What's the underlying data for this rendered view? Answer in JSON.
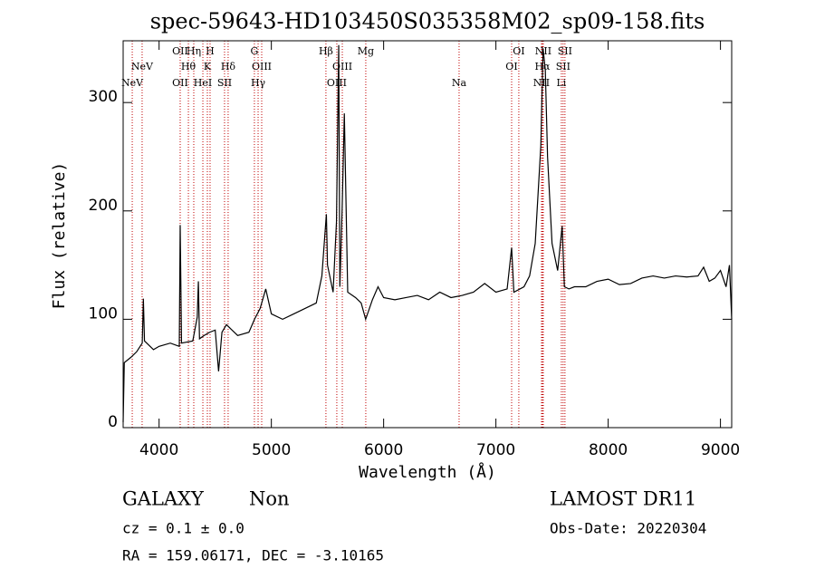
{
  "chart_data": {
    "type": "line",
    "title": "spec-59643-HD103450S035358M02_sp09-158.fits",
    "x_label": "Wavelength (Å)",
    "y_label": "Flux (relative)",
    "xlim": [
      3680,
      9100
    ],
    "ylim": [
      0,
      357
    ],
    "xticks": [
      4000,
      5000,
      6000,
      7000,
      8000,
      9000
    ],
    "yticks": [
      0,
      100,
      200,
      300
    ],
    "x": [
      3680,
      3690,
      3750,
      3800,
      3850,
      3860,
      3870,
      3950,
      4000,
      4100,
      4180,
      4188,
      4200,
      4300,
      4340,
      4350,
      4360,
      4400,
      4450,
      4500,
      4530,
      4560,
      4600,
      4700,
      4800,
      4850,
      4900,
      4950,
      5000,
      5100,
      5200,
      5300,
      5400,
      5450,
      5490,
      5500,
      5550,
      5580,
      5600,
      5610,
      5630,
      5650,
      5680,
      5750,
      5800,
      5840,
      5900,
      5950,
      6000,
      6100,
      6200,
      6300,
      6400,
      6500,
      6600,
      6700,
      6800,
      6900,
      7000,
      7100,
      7140,
      7160,
      7250,
      7300,
      7350,
      7400,
      7420,
      7440,
      7460,
      7500,
      7550,
      7590,
      7610,
      7650,
      7700,
      7800,
      7900,
      8000,
      8100,
      8200,
      8300,
      8400,
      8500,
      8600,
      8700,
      8800,
      8850,
      8900,
      8950,
      9000,
      9050,
      9080,
      9100
    ],
    "series": [
      {
        "name": "Flux",
        "color": "#000000",
        "values": [
          5,
          60,
          65,
          70,
          78,
          119,
          80,
          72,
          75,
          78,
          75,
          187,
          78,
          80,
          102,
          135,
          82,
          85,
          88,
          90,
          52,
          88,
          95,
          85,
          88,
          100,
          110,
          128,
          105,
          100,
          105,
          110,
          115,
          140,
          197,
          150,
          125,
          190,
          353,
          130,
          200,
          290,
          125,
          120,
          115,
          100,
          118,
          130,
          120,
          118,
          120,
          122,
          118,
          125,
          120,
          122,
          125,
          133,
          125,
          128,
          166,
          125,
          130,
          140,
          170,
          260,
          350,
          330,
          250,
          170,
          145,
          186,
          130,
          128,
          130,
          130,
          135,
          137,
          132,
          133,
          138,
          140,
          138,
          140,
          139,
          140,
          148,
          135,
          138,
          145,
          130,
          150,
          100
        ]
      }
    ],
    "line_color": "#c00000",
    "lines": [
      [
        {
          "label": "OII",
          "x": 4188
        },
        {
          "label": "Hη",
          "x": 4309
        },
        {
          "label": "H",
          "x": 4454
        },
        {
          "label": "G",
          "x": 4849
        },
        {
          "label": "Hβ",
          "x": 5486
        },
        {
          "label": "Mg",
          "x": 5841
        },
        {
          "label": "OI",
          "x": 7204
        },
        {
          "label": "NII",
          "x": 7422
        },
        {
          "label": "SII",
          "x": 7615
        }
      ],
      [
        {
          "label": "NeV",
          "x": 3849
        },
        {
          "label": "Hθ",
          "x": 4261
        },
        {
          "label": "K",
          "x": 4430
        },
        {
          "label": "Hδ",
          "x": 4615
        },
        {
          "label": "OIII",
          "x": 4914
        },
        {
          "label": "OIII",
          "x": 5632
        },
        {
          "label": "OI",
          "x": 7140
        },
        {
          "label": "Hα",
          "x": 7414
        },
        {
          "label": "SII",
          "x": 7599
        }
      ],
      [
        {
          "label": "NeV",
          "x": 3761
        },
        {
          "label": "OII",
          "x": 4188
        },
        {
          "label": "HeI",
          "x": 4390
        },
        {
          "label": "SII",
          "x": 4583
        },
        {
          "label": "Hγ",
          "x": 4882
        },
        {
          "label": "OIII",
          "x": 5583
        },
        {
          "label": "Na",
          "x": 6672
        },
        {
          "label": "NII",
          "x": 7406
        },
        {
          "label": "Li",
          "x": 7583
        }
      ]
    ],
    "footer": {
      "class": "GALAXY",
      "subclass": "Non",
      "survey": "LAMOST DR11",
      "cz": "cz = 0.1 ± 0.0",
      "obs_date": "Obs-Date: 20220304",
      "coords": "RA = 159.06171, DEC =  -3.10165"
    }
  }
}
